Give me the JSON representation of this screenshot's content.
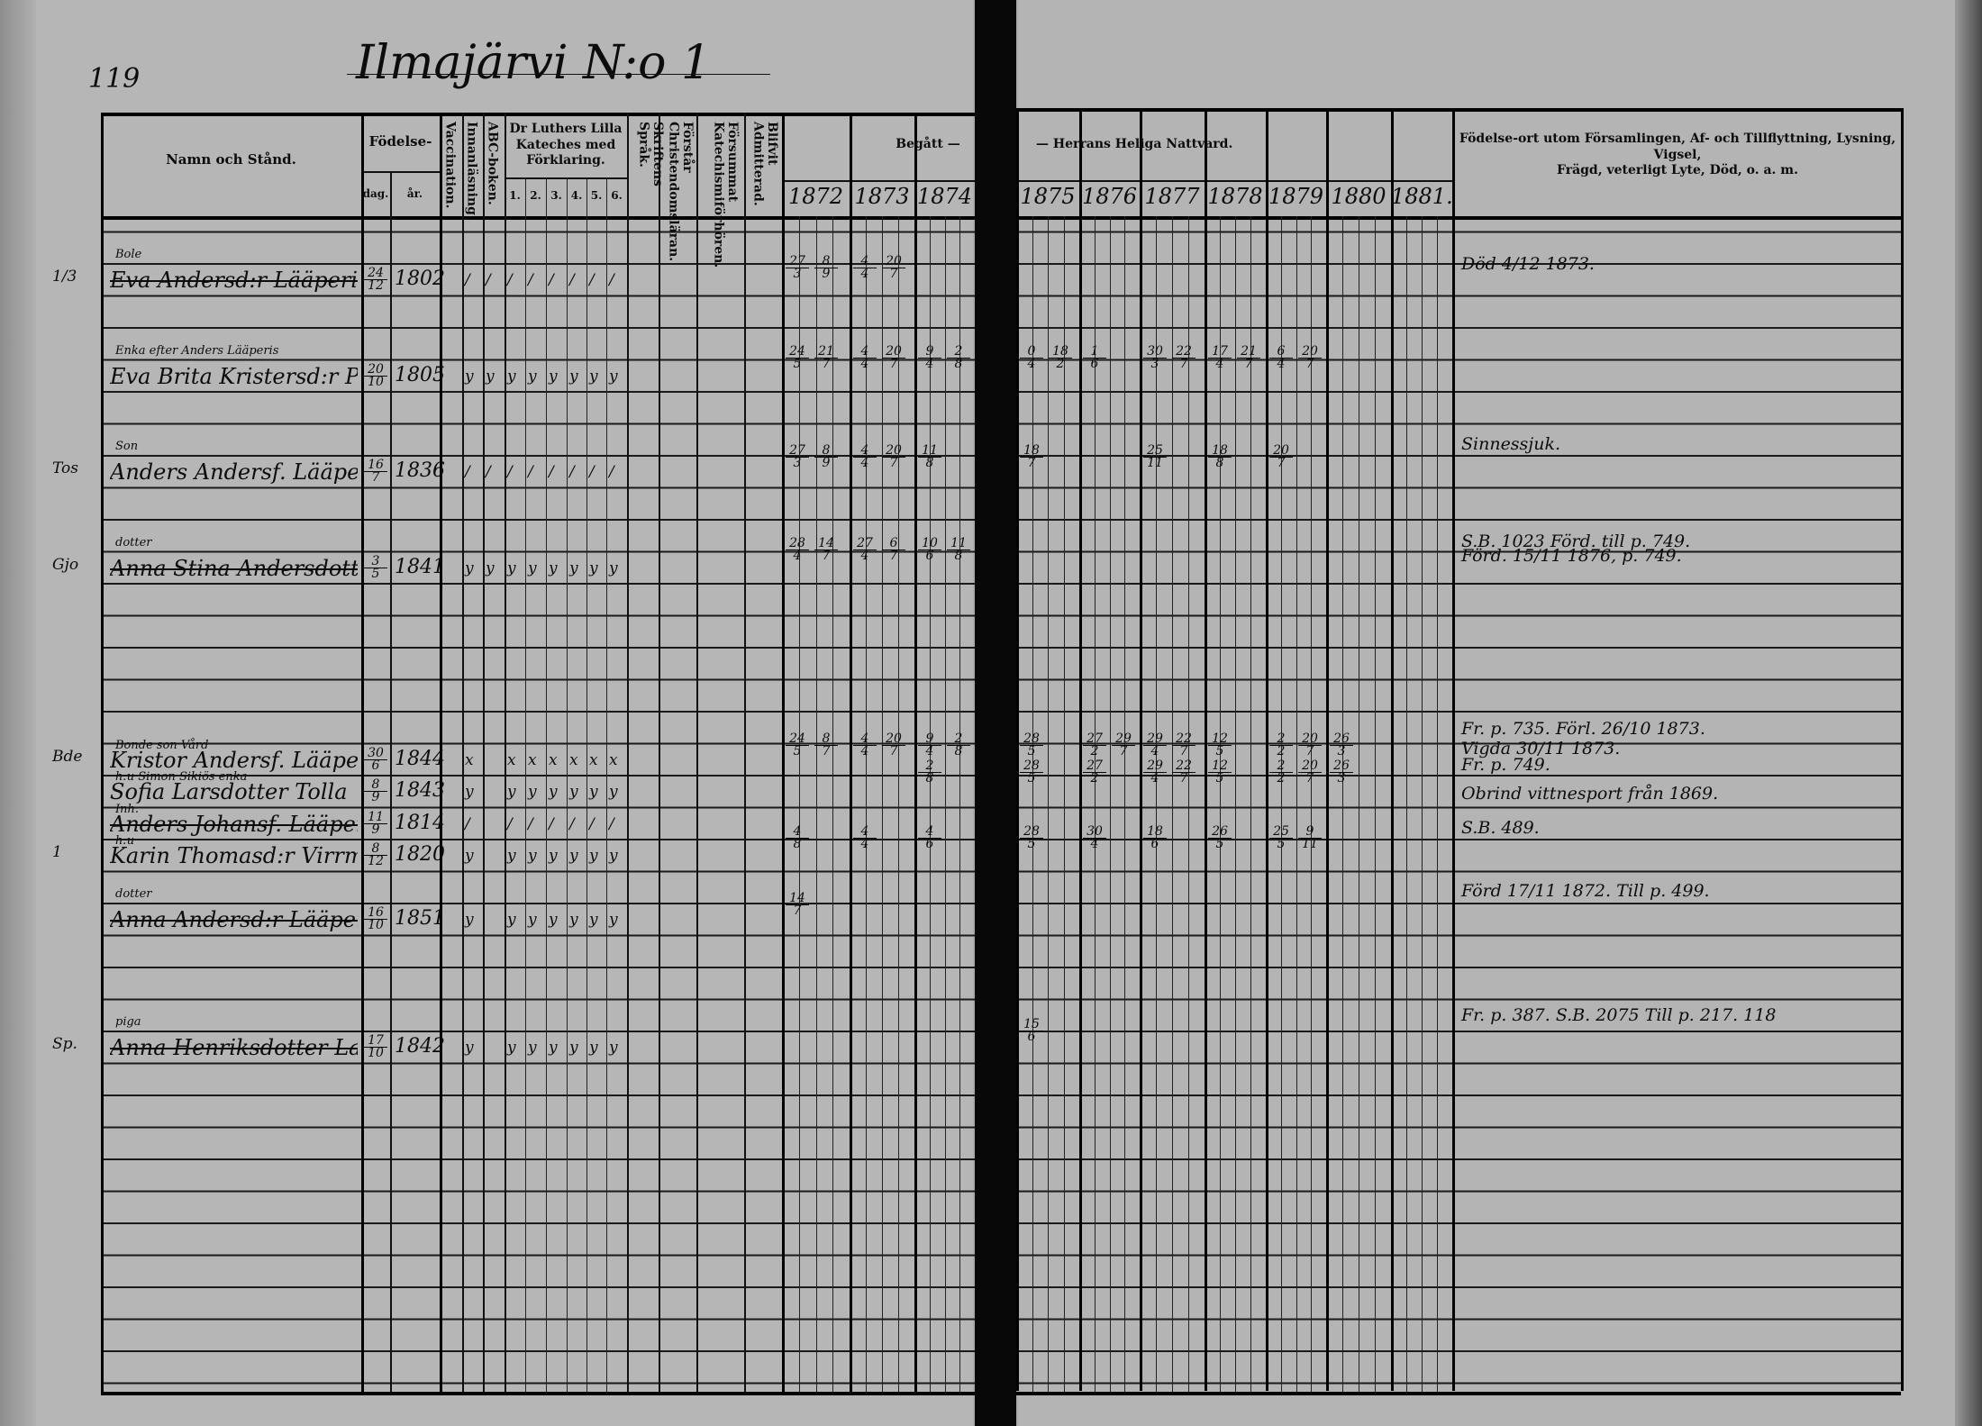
{
  "page": {
    "page_number": "119",
    "title": "Ilmajärvi N:o 1"
  },
  "header": {
    "name_col": "Namn och Stånd.",
    "birth": "Födelse-",
    "birth_day": "dag.",
    "birth_year": "år.",
    "vaccination": "Vaccination.",
    "reading": "Innanläsning.",
    "abc": "ABC-boken.",
    "catechism": "Dr Luthers Lilla Kateches med Förklaring.",
    "catechism_parts": [
      "1.",
      "2.",
      "3.",
      "4.",
      "5.",
      "6."
    ],
    "scripture": "Skriftens Språk.",
    "understands": "Förstår Christendomsläran.",
    "missed": "Försummat Katechismiförhören.",
    "admitted": "Blifvit Admitterad.",
    "communion_left": "Begått —",
    "communion_right": "— Herrans Heliga Nattvard.",
    "years": [
      "1872",
      "1873",
      "1874",
      "1875",
      "1876",
      "1877",
      "1878",
      "1879",
      "1880",
      "1881."
    ],
    "remarks_line1": "Födelse-ort utom Församlingen, Af- och Tillflyttning, Lysning, Vigsel,",
    "remarks_line2": "Frägd, veterligt Lyte, Död, o. a. m."
  },
  "rows": [
    {
      "margin": "1/3",
      "role": "Bole",
      "name": "Eva Andersd:r Lääperi",
      "struck": true,
      "day": "24/12",
      "year": "1802",
      "marks": [
        "/",
        "/",
        "/",
        "/",
        "/",
        "/",
        "/",
        "/"
      ],
      "communion": {
        "1872": [
          "27/3",
          "8/9"
        ],
        "1873": [
          "4/4",
          "20/7"
        ]
      }
    },
    {
      "margin": "",
      "role": "Enka efter Anders Lääperis",
      "name": "Eva Brita Kristersd:r Pellinen",
      "struck": false,
      "day": "20/10",
      "year": "1805",
      "marks": [
        "y",
        "y",
        "y",
        "y",
        "y",
        "y",
        "y",
        "y"
      ],
      "communion": {
        "1872": [
          "24/5",
          "21/7"
        ],
        "1873": [
          "4/4",
          "20/7"
        ],
        "1874": [
          "9/4",
          "2/8"
        ],
        "1875": [
          "0/4",
          "18/2"
        ],
        "1876": [
          "1/6"
        ],
        "1877": [
          "30/3",
          "22/7"
        ],
        "1878": [
          "17/4",
          "21/7"
        ],
        "1879": [
          "6/4",
          "20/7"
        ]
      }
    },
    {
      "margin": "Tos",
      "role": "Son",
      "name": "Anders Andersf. Lääperi",
      "struck": false,
      "day": "16/7",
      "year": "1836",
      "marks": [
        "/",
        "/",
        "/",
        "/",
        "/",
        "/",
        "/",
        "/"
      ],
      "communion": {
        "1872": [
          "27/3",
          "8/9"
        ],
        "1873": [
          "4/4",
          "20/7"
        ],
        "1874": [
          "11/8"
        ],
        "1875": [
          "18/7"
        ],
        "1877": [
          "25/11"
        ],
        "1878": [
          "18/8"
        ],
        "1879": [
          "20/7"
        ]
      }
    },
    {
      "margin": "Gjo",
      "role": "dotter",
      "name": "Anna Stina Andersdotter Lääperi",
      "struck": true,
      "day": "3/5",
      "year": "1841",
      "marks": [
        "y",
        "y",
        "y",
        "y",
        "y",
        "y",
        "y",
        "y"
      ],
      "communion": {
        "1872": [
          "28/4",
          "14/7"
        ],
        "1873": [
          "27/4",
          "6/7"
        ],
        "1874": [
          "10/6",
          "11/8"
        ]
      }
    },
    {
      "margin": "Bde",
      "role": "Bonde son Vård",
      "name": "Kristor Andersf. Lääperi",
      "struck": false,
      "day": "30/6",
      "year": "1844",
      "marks": [
        "x",
        "",
        "x",
        "x",
        "x",
        "x",
        "x",
        "x"
      ],
      "communion": {
        "1872": [
          "24/5",
          "8/7"
        ],
        "1873": [
          "4/4",
          "20/7"
        ],
        "1874": [
          "9/4",
          "2/8"
        ],
        "1875": [
          "28/5"
        ],
        "1876": [
          "27/2",
          "29/7"
        ],
        "1877": [
          "29/4",
          "22/7"
        ],
        "1878": [
          "12/5"
        ],
        "1879": [
          "2/2",
          "20/7"
        ],
        "1880": [
          "26/3"
        ]
      }
    },
    {
      "margin": "",
      "role": "h:u Simon Sikiös enka",
      "name": "Sofia Larsdotter Tolla",
      "struck": false,
      "day": "8/9",
      "year": "1843",
      "marks": [
        "y",
        "",
        "y",
        "y",
        "y",
        "y",
        "y",
        "y"
      ],
      "communion": {
        "1874": [
          "2/8"
        ],
        "1875": [
          "28/5"
        ],
        "1876": [
          "27/2"
        ],
        "1877": [
          "29/4",
          "22/7"
        ],
        "1878": [
          "12/5"
        ],
        "1879": [
          "2/2",
          "20/7"
        ],
        "1880": [
          "26/3"
        ]
      }
    },
    {
      "margin": "",
      "role": "Inh.",
      "name": "Anders Johansf. Lääperi",
      "struck": true,
      "day": "11/9",
      "year": "1814",
      "marks": [
        "/",
        "",
        "/",
        "/",
        "/",
        "/",
        "/",
        "/"
      ],
      "communion": {}
    },
    {
      "margin": "1",
      "role": "h:u",
      "name": "Karin Thomasd:r Virrmi",
      "struck": false,
      "day": "8/12",
      "year": "1820",
      "marks": [
        "y",
        "",
        "y",
        "y",
        "y",
        "y",
        "y",
        "y"
      ],
      "communion": {
        "1872": [
          "4/8"
        ],
        "1873": [
          "4/4"
        ],
        "1874": [
          "4/6"
        ],
        "1875": [
          "28/5"
        ],
        "1876": [
          "30/4"
        ],
        "1877": [
          "18/6"
        ],
        "1878": [
          "26/5"
        ],
        "1879": [
          "25/5",
          "9/11"
        ]
      }
    },
    {
      "margin": "",
      "role": "dotter",
      "name": "Anna Andersd:r Lääperi",
      "struck": true,
      "day": "16/10",
      "year": "1851",
      "marks": [
        "y",
        "",
        "y",
        "y",
        "y",
        "y",
        "y",
        "y"
      ],
      "communion": {
        "1872": [
          "14/7"
        ]
      }
    },
    {
      "margin": "Sp.",
      "role": "piga",
      "name": "Anna Henriksdotter Lammi",
      "struck": true,
      "day": "17/10",
      "year": "1842",
      "marks": [
        "y",
        "",
        "y",
        "y",
        "y",
        "y",
        "y",
        "y"
      ],
      "communion": {
        "1875": [
          "15/6"
        ]
      }
    }
  ],
  "remarks": [
    "Död 4/12 1873.",
    "Sinnessjuk.",
    "S.B. 1023  Förd. till p. 749.",
    "Förd. 15/11 1876, p. 749.",
    "Fr. p. 735.   Förl. 26/10 1873.",
    "Vigda 30/11 1873.",
    "Fr. p. 749.",
    "Obrind vittnesport från 1869.",
    "S.B. 489.",
    "Förd 17/11 1872.  Till p. 499.",
    "Fr. p. 387.  S.B. 2075  Till p. 217. 118"
  ]
}
